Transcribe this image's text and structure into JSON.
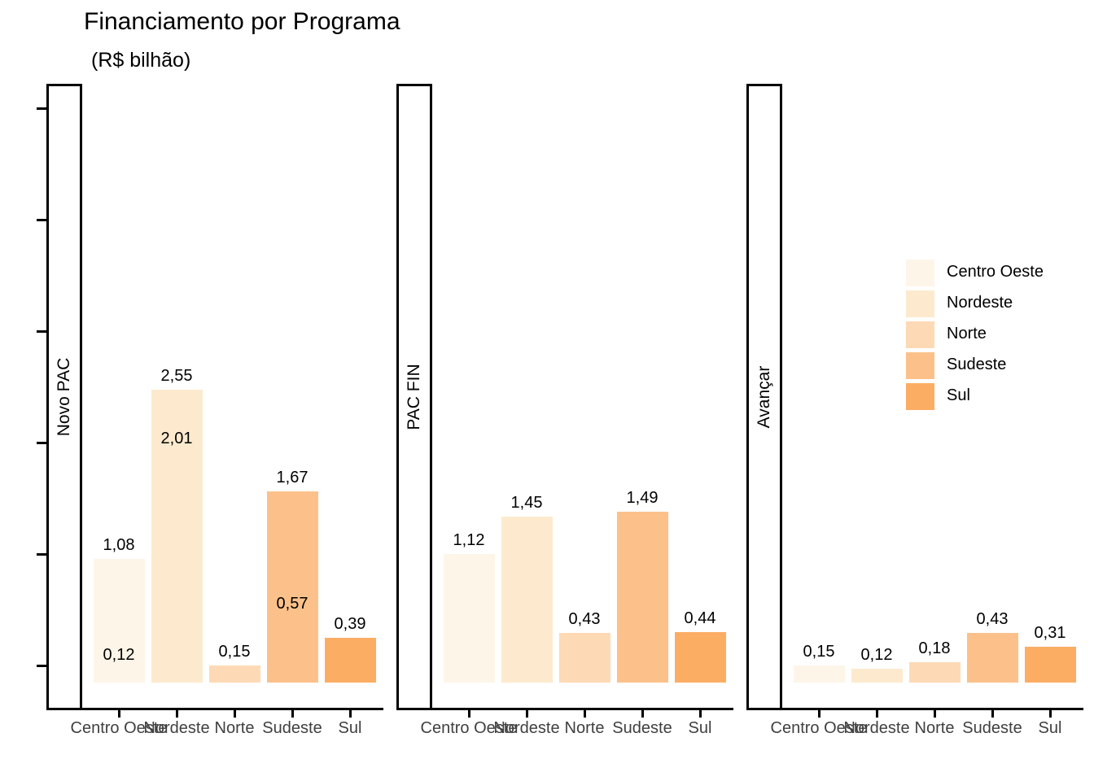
{
  "title": "Financiamento por Programa",
  "subtitle": "(R$ bilhão)",
  "chart_data": {
    "type": "bar",
    "title": "Financiamento por Programa",
    "subtitle": "(R$ bilhão)",
    "unit": "R$ bilhão",
    "categories": [
      "Centro Oeste",
      "Nordeste",
      "Norte",
      "Sudeste",
      "Sul"
    ],
    "category_colors": {
      "Centro Oeste": "#FEF5E9",
      "Nordeste": "#FDEACE",
      "Norte": "#FDDAB5",
      "Sudeste": "#FCC18A",
      "Sul": "#FCAD64"
    },
    "facets": [
      {
        "label": "Novo PAC",
        "values": [
          1.08,
          2.55,
          0.15,
          1.67,
          0.39
        ],
        "value_labels": [
          "1,08",
          "2,55",
          "0,15",
          "1,67",
          "0,39"
        ],
        "overlay_labels": [
          {
            "category": "Centro Oeste",
            "value": 0.12,
            "label": "0,12"
          },
          {
            "category": "Nordeste",
            "value": 2.01,
            "label": "2,01"
          },
          {
            "category": "Sudeste",
            "value": 0.57,
            "label": "0,57"
          }
        ]
      },
      {
        "label": "PAC FIN",
        "values": [
          1.12,
          1.45,
          0.43,
          1.49,
          0.44
        ],
        "value_labels": [
          "1,12",
          "1,45",
          "0,43",
          "1,49",
          "0,44"
        ],
        "overlay_labels": []
      },
      {
        "label": "Avançar",
        "values": [
          0.15,
          0.12,
          0.18,
          0.43,
          0.31
        ],
        "value_labels": [
          "0,15",
          "0,12",
          "0,18",
          "0,43",
          "0,31"
        ],
        "overlay_labels": []
      }
    ],
    "legend": {
      "position": "right",
      "entries": [
        "Centro Oeste",
        "Nordeste",
        "Norte",
        "Sudeste",
        "Sul"
      ]
    },
    "x_axis": {
      "labels": [
        "Centro Oeste",
        "Nordeste",
        "Norte",
        "Sudeste",
        "Sul"
      ],
      "label_color": "#404040",
      "overlapping": true
    },
    "y_axis": {
      "tick_count": 6,
      "tick_labels_shown": false
    },
    "grid": false
  }
}
